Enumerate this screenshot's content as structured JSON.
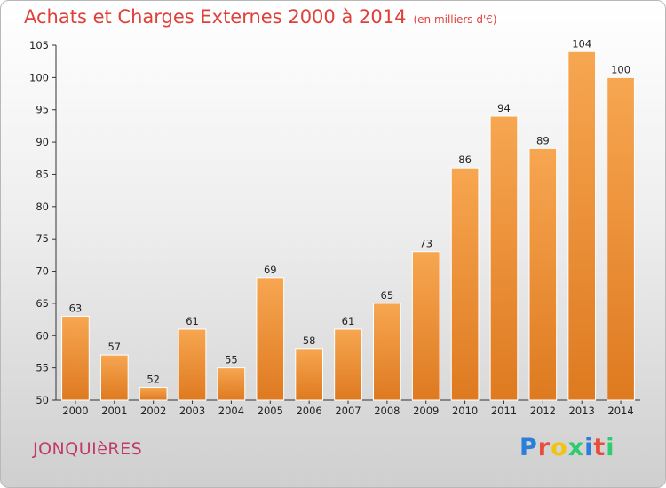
{
  "header": {
    "title": "Achats et Charges Externes 2000 à 2014",
    "subtitle": "(en milliers d'€)"
  },
  "footer": {
    "location": "JONQUIèRES",
    "brand": "Proxiti"
  },
  "colors": {
    "title": "#e0403a",
    "location": "#c03a6a",
    "bar_light": "#f7a651",
    "bar_dark": "#de7a20",
    "brand_letters": [
      "#2c7fd8",
      "#e74c3c",
      "#f1c40f",
      "#2ecc71",
      "#2c7fd8",
      "#e74c3c",
      "#2ecc71"
    ]
  },
  "chart_data": {
    "type": "bar",
    "title": "Achats et Charges Externes 2000 à 2014",
    "subtitle": "(en milliers d'€)",
    "categories": [
      "2000",
      "2001",
      "2002",
      "2003",
      "2004",
      "2005",
      "2006",
      "2007",
      "2008",
      "2009",
      "2010",
      "2011",
      "2012",
      "2013",
      "2014"
    ],
    "values": [
      63,
      57,
      52,
      61,
      55,
      69,
      58,
      61,
      65,
      73,
      86,
      94,
      89,
      104,
      100
    ],
    "xlabel": "",
    "ylabel": "",
    "ylim": [
      50,
      105
    ],
    "yticks": [
      50,
      55,
      60,
      65,
      70,
      75,
      80,
      85,
      90,
      95,
      100,
      105
    ],
    "grid": false,
    "data_labels": true
  }
}
